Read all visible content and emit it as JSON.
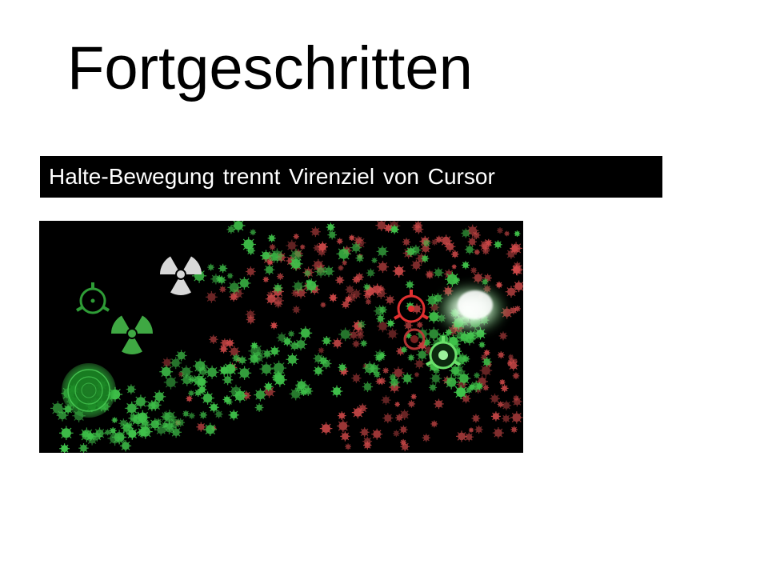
{
  "slide": {
    "title": "Fortgeschritten",
    "caption": "Halte-Bewegung trennt Virenziel von Cursor"
  },
  "game": {
    "colors": {
      "background": "#000000",
      "player_virus": "#3fc24a",
      "enemy_virus": "#d24a4a",
      "hazard_icon": "#d8d8d8",
      "target_ring_red": "#e03030",
      "target_ring_green": "#5fd35f"
    },
    "icons": [
      "radiation-hazard-icon-white",
      "radiation-hazard-icon-green",
      "crosshair-target-icon-green",
      "green-virus-base-icon",
      "red-target-crosshair-icon",
      "green-cursor-crosshair-icon"
    ]
  }
}
